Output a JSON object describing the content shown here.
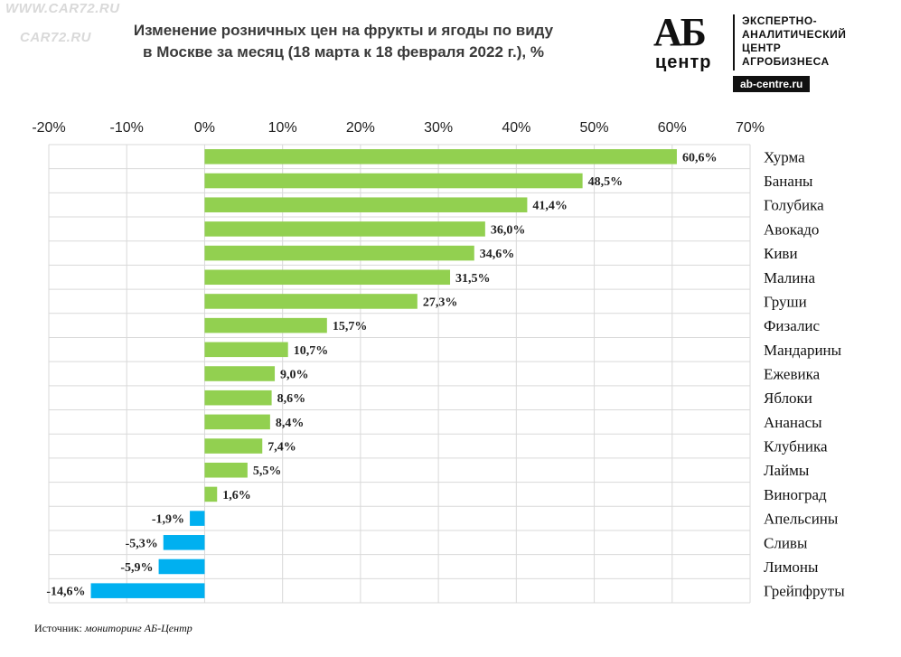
{
  "watermark": {
    "top": "WWW.CAR72.RU",
    "mid": "CAR72.RU"
  },
  "header": {
    "title_line1": "Изменение розничных  цен на фрукты и ягоды  по виду",
    "title_line2": "в Москве за месяц (18 марта  к 18 февраля  2022 г.), %"
  },
  "logo": {
    "mark": "АБ",
    "center": "центр",
    "line1": "ЭКСПЕРТНО-",
    "line2": "АНАЛИТИЧЕСКИЙ",
    "line3": "ЦЕНТР",
    "line4": "АГРОБИЗНЕСА",
    "site": "ab-centre.ru"
  },
  "source": {
    "label": "Источник:",
    "value": "мониторинг АБ-Центр"
  },
  "chart_data": {
    "type": "bar",
    "orientation": "horizontal",
    "title": "Изменение розничных  цен на фрукты и ягоды  по виду в Москве за месяц (18 марта  к 18 февраля  2022 г.), %",
    "xlim": [
      -20,
      70
    ],
    "x_ticks": [
      -20,
      -10,
      0,
      10,
      20,
      30,
      40,
      50,
      60,
      70
    ],
    "x_tick_labels": [
      "-20%",
      "-10%",
      "0%",
      "10%",
      "20%",
      "30%",
      "40%",
      "50%",
      "60%",
      "70%"
    ],
    "grid": true,
    "categories": [
      "Хурма",
      "Бананы",
      "Голубика",
      "Авокадо",
      "Киви",
      "Малина",
      "Груши",
      "Физалис",
      "Мандарины",
      "Ежевика",
      "Яблоки",
      "Ананасы",
      "Клубника",
      "Лаймы",
      "Виноград",
      "Апельсины",
      "Сливы",
      "Лимоны",
      "Грейпфруты"
    ],
    "values": [
      60.6,
      48.5,
      41.4,
      36.0,
      34.6,
      31.5,
      27.3,
      15.7,
      10.7,
      9.0,
      8.6,
      8.4,
      7.4,
      5.5,
      1.6,
      -1.9,
      -5.3,
      -5.9,
      -14.6
    ],
    "data_labels": [
      "60,6%",
      "48,5%",
      "41,4%",
      "36,0%",
      "34,6%",
      "31,5%",
      "27,3%",
      "15,7%",
      "10,7%",
      "9,0%",
      "8,6%",
      "8,4%",
      "7,4%",
      "5,5%",
      "1,6%",
      "-1,9%",
      "-5,3%",
      "-5,9%",
      "-14,6%"
    ],
    "colors": {
      "positive": "#92d050",
      "negative": "#00b0f0",
      "grid": "#d9d9d9"
    }
  }
}
